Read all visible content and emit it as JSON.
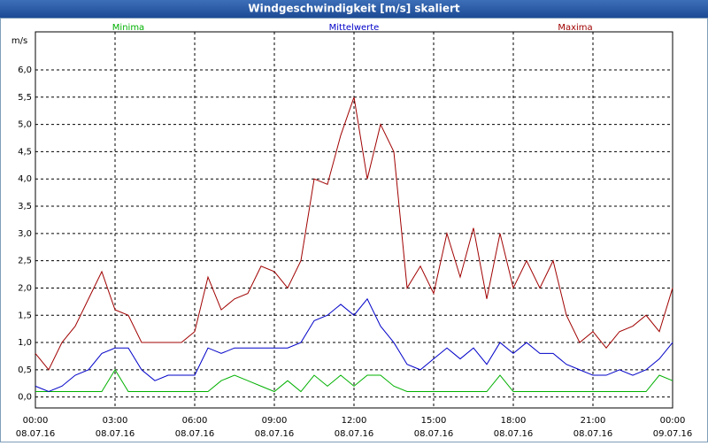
{
  "window_title": "Windgeschwindigkeit [m/s] skaliert",
  "chart_data": {
    "type": "line",
    "y_unit": "m/s",
    "x": [
      0,
      0.5,
      1,
      1.5,
      2,
      2.5,
      3,
      3.5,
      4,
      4.5,
      5,
      5.5,
      6,
      6.5,
      7,
      7.5,
      8,
      8.5,
      9,
      9.5,
      10,
      10.5,
      11,
      11.5,
      12,
      12.5,
      13,
      13.5,
      14,
      14.5,
      15,
      15.5,
      16,
      16.5,
      17,
      17.5,
      18,
      18.5,
      19,
      19.5,
      20,
      20.5,
      21,
      21.5,
      22,
      22.5,
      23,
      23.5,
      24
    ],
    "series": [
      {
        "name": "Minima",
        "color": "#00b000",
        "values": [
          0.1,
          0.1,
          0.1,
          0.1,
          0.1,
          0.1,
          0.5,
          0.1,
          0.1,
          0.1,
          0.1,
          0.1,
          0.1,
          0.1,
          0.3,
          0.4,
          0.3,
          0.2,
          0.1,
          0.3,
          0.1,
          0.4,
          0.2,
          0.4,
          0.2,
          0.4,
          0.4,
          0.2,
          0.1,
          0.1,
          0.1,
          0.1,
          0.1,
          0.1,
          0.1,
          0.4,
          0.1,
          0.1,
          0.1,
          0.1,
          0.1,
          0.1,
          0.1,
          0.1,
          0.1,
          0.1,
          0.1,
          0.4,
          0.3
        ]
      },
      {
        "name": "Mittelwerte",
        "color": "#0000c8",
        "values": [
          0.2,
          0.1,
          0.2,
          0.4,
          0.5,
          0.8,
          0.9,
          0.9,
          0.5,
          0.3,
          0.4,
          0.4,
          0.4,
          0.9,
          0.8,
          0.9,
          0.9,
          0.9,
          0.9,
          0.9,
          1.0,
          1.4,
          1.5,
          1.7,
          1.5,
          1.8,
          1.3,
          1.0,
          0.6,
          0.5,
          0.7,
          0.9,
          0.7,
          0.9,
          0.6,
          1.0,
          0.8,
          1.0,
          0.8,
          0.8,
          0.6,
          0.5,
          0.4,
          0.4,
          0.5,
          0.4,
          0.5,
          0.7,
          1.0
        ]
      },
      {
        "name": "Maxima",
        "color": "#a00000",
        "values": [
          0.8,
          0.5,
          1.0,
          1.3,
          1.8,
          2.3,
          1.6,
          1.5,
          1.0,
          1.0,
          1.0,
          1.0,
          1.2,
          2.2,
          1.6,
          1.8,
          1.9,
          2.4,
          2.3,
          2.0,
          2.5,
          4.0,
          3.9,
          4.8,
          5.5,
          4.0,
          5.0,
          4.5,
          2.0,
          2.4,
          1.9,
          3.0,
          2.2,
          3.1,
          1.8,
          3.0,
          2.0,
          2.5,
          2.0,
          2.5,
          1.5,
          1.0,
          1.2,
          0.9,
          1.2,
          1.3,
          1.5,
          1.2,
          2.0
        ]
      }
    ],
    "xlim": [
      0,
      24
    ],
    "xticks": [
      {
        "value": 0,
        "label": "00:00",
        "date": "08.07.16"
      },
      {
        "value": 3,
        "label": "03:00",
        "date": "08.07.16"
      },
      {
        "value": 6,
        "label": "06:00",
        "date": "08.07.16"
      },
      {
        "value": 9,
        "label": "09:00",
        "date": "08.07.16"
      },
      {
        "value": 12,
        "label": "12:00",
        "date": "08.07.16"
      },
      {
        "value": 15,
        "label": "15:00",
        "date": "08.07.16"
      },
      {
        "value": 18,
        "label": "18:00",
        "date": "08.07.16"
      },
      {
        "value": 21,
        "label": "21:00",
        "date": "08.07.16"
      },
      {
        "value": 24,
        "label": "00:00",
        "date": "09.07.16"
      }
    ],
    "ylim": [
      -0.2,
      6.6
    ],
    "yticks": [
      {
        "value": 0,
        "label": "0,0"
      },
      {
        "value": 0.5,
        "label": "0,5"
      },
      {
        "value": 1,
        "label": "1,0"
      },
      {
        "value": 1.5,
        "label": "1,5"
      },
      {
        "value": 2,
        "label": "2,0"
      },
      {
        "value": 2.5,
        "label": "2,5"
      },
      {
        "value": 3,
        "label": "3,0"
      },
      {
        "value": 3.5,
        "label": "3,5"
      },
      {
        "value": 4,
        "label": "4,0"
      },
      {
        "value": 4.5,
        "label": "4,5"
      },
      {
        "value": 5,
        "label": "5,0"
      },
      {
        "value": 5.5,
        "label": "5,5"
      },
      {
        "value": 6,
        "label": "6,0"
      }
    ],
    "grid": true
  }
}
